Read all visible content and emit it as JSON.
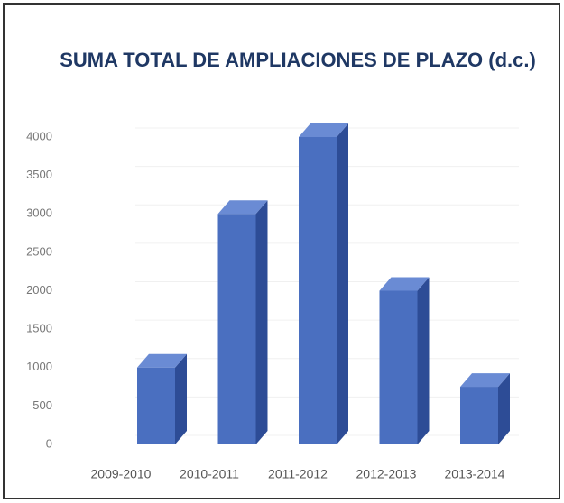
{
  "chart_data": {
    "type": "bar",
    "title": "SUMA TOTAL DE AMPLIACIONES DE PLAZO (d.c.)",
    "categories": [
      "2009-2010",
      "2010-2011",
      "2011-2012",
      "2012-2013",
      "2013-2014"
    ],
    "values": [
      1000,
      3000,
      4000,
      2000,
      750
    ],
    "color": "#4a6fc0",
    "ylim": [
      0,
      4000
    ],
    "yticks": [
      0,
      500,
      1000,
      1500,
      2000,
      2500,
      3000,
      3500,
      4000
    ],
    "grid": true
  }
}
